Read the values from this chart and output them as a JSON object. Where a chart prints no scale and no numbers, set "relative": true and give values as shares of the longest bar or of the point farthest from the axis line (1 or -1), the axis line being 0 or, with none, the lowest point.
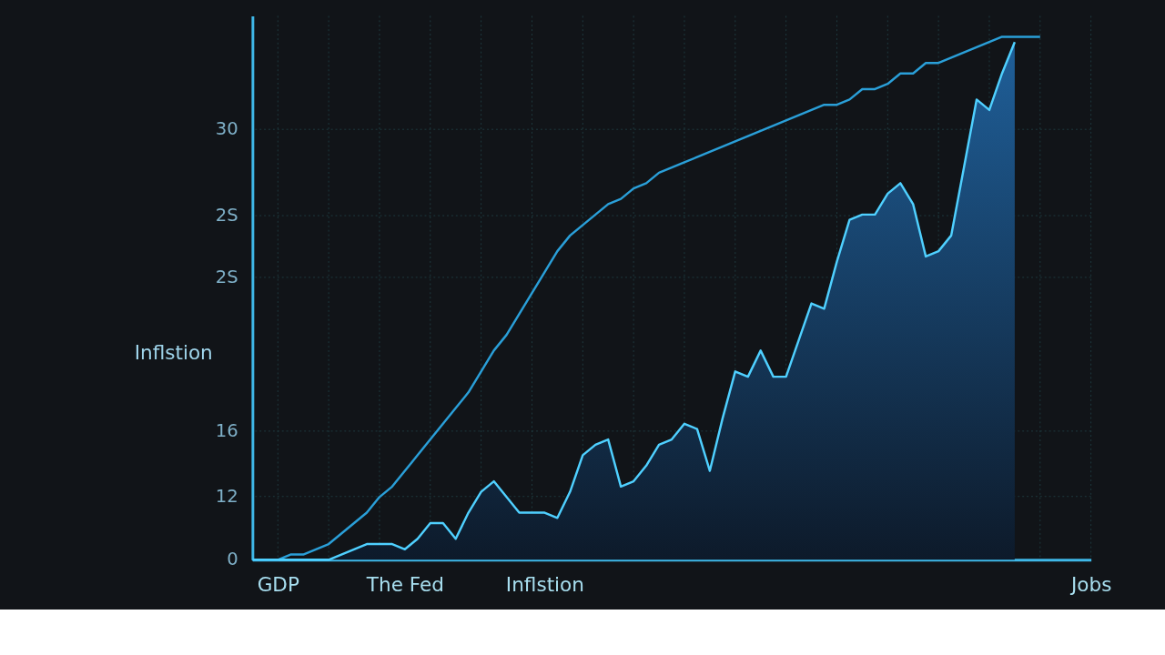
{
  "chart_data": {
    "type": "line",
    "ylabel": "Inflstion",
    "relative": true,
    "grid": true,
    "annotations": [
      "0",
      "12",
      "16",
      "2S",
      "2S",
      "30"
    ],
    "categories": [
      null,
      null,
      "GDP",
      null,
      null,
      null,
      null,
      null,
      null,
      null,
      null,
      null,
      "The Fed",
      null,
      null,
      null,
      null,
      null,
      null,
      null,
      null,
      null,
      null,
      "Inflstion",
      null,
      null,
      null,
      null,
      null,
      null,
      null,
      null,
      null,
      null,
      null,
      null,
      null,
      null,
      null,
      null,
      null,
      null,
      null,
      null,
      null,
      null,
      null,
      null,
      null,
      null,
      null,
      null,
      null,
      null,
      null,
      null,
      null,
      null,
      null,
      null,
      null,
      null,
      null,
      null,
      null,
      null,
      "Jobs"
    ],
    "series": [
      {
        "color": "#2a9fd8",
        "values": [
          0,
          0,
          0,
          0.01,
          0.01,
          0.02,
          0.03,
          0.05,
          0.07,
          0.09,
          0.12,
          0.14,
          0.17,
          0.2,
          0.23,
          0.26,
          0.29,
          0.32,
          0.36,
          0.4,
          0.43,
          0.47,
          0.51,
          0.55,
          0.59,
          0.62,
          0.64,
          0.66,
          0.68,
          0.69,
          0.71,
          0.72,
          0.74,
          0.75,
          0.76,
          0.77,
          0.78,
          0.79,
          0.8,
          0.81,
          0.82,
          0.83,
          0.84,
          0.85,
          0.86,
          0.87,
          0.87,
          0.88,
          0.9,
          0.9,
          0.91,
          0.93,
          0.93,
          0.95,
          0.95,
          0.96,
          0.97,
          0.98,
          0.99,
          1,
          1,
          1,
          1,
          null,
          null,
          null,
          null
        ]
      },
      {
        "type": "area",
        "color": "#4fd0ff",
        "values": [
          0,
          0,
          0,
          0,
          0,
          0,
          0,
          0.01,
          0.02,
          0.03,
          0.03,
          0.03,
          0.02,
          0.04,
          0.07,
          0.07,
          0.04,
          0.09,
          0.13,
          0.15,
          0.12,
          0.09,
          0.09,
          0.09,
          0.08,
          0.13,
          0.2,
          0.22,
          0.23,
          0.14,
          0.15,
          0.18,
          0.22,
          0.23,
          0.26,
          0.25,
          0.17,
          0.27,
          0.36,
          0.35,
          0.4,
          0.35,
          0.35,
          0.42,
          0.49,
          0.48,
          0.57,
          0.65,
          0.66,
          0.66,
          0.7,
          0.72,
          0.68,
          0.58,
          0.59,
          0.62,
          0.75,
          0.88,
          0.86,
          0.93,
          0.99,
          null,
          null,
          null,
          null,
          null,
          null
        ]
      }
    ]
  }
}
